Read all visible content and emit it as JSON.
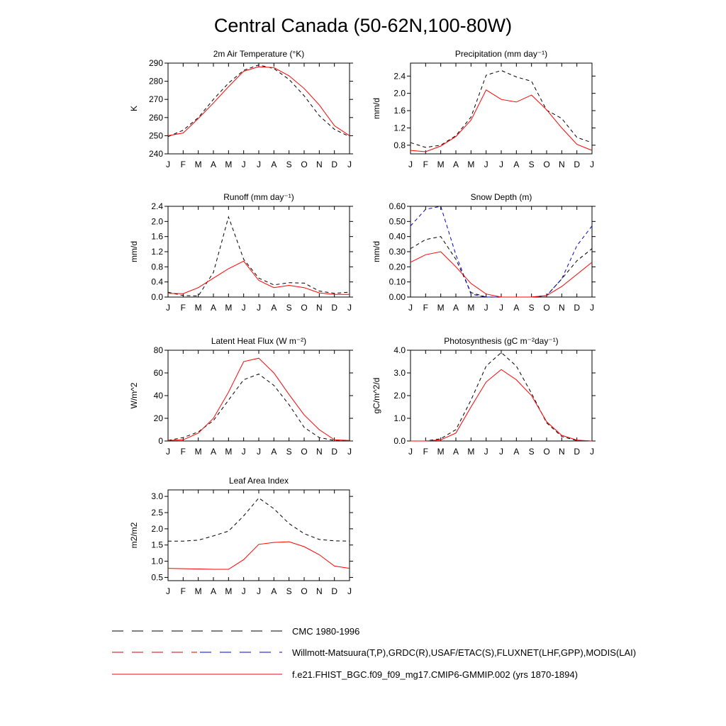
{
  "figure": {
    "title": "Central Canada (50-62N,100-80W)"
  },
  "legend": [
    {
      "label": "CMC 1980-1996",
      "color": "#000000",
      "dash": "dashed"
    },
    {
      "label": "Willmott-Matsuura(T,P),GRDC(R),USAF/ETAC(S),FLUXNET(LHF,GPP),MODIS(LAI)",
      "color": "#cc0000",
      "color2": "#0000cc",
      "dash": "dashed"
    },
    {
      "label": "f.e21.FHIST_BGC.f09_f09_mg17.CMIP6-GMMIP.002 (yrs 1870-1894)",
      "color": "#ff0000",
      "dash": "solid"
    }
  ],
  "chart_data": [
    {
      "type": "line",
      "title": "2m Air Temperature (°K)",
      "ylabel": "K",
      "categories": [
        "J",
        "F",
        "M",
        "A",
        "M",
        "J",
        "J",
        "A",
        "S",
        "O",
        "N",
        "D",
        "J"
      ],
      "ylim": [
        240,
        290
      ],
      "yticks": [
        "240",
        "250",
        "260",
        "270",
        "280",
        "290"
      ],
      "series": [
        {
          "style": "obs",
          "color": "#000000",
          "dash": "5,4",
          "values": [
            249.5,
            253.0,
            260.0,
            270.0,
            279.0,
            286.0,
            289.0,
            287.0,
            281.0,
            272.0,
            261.0,
            253.5,
            249.5
          ]
        },
        {
          "style": "model",
          "color": "#ff0000",
          "dash": "",
          "values": [
            250.0,
            251.5,
            259.5,
            268.0,
            277.0,
            285.5,
            288.0,
            287.5,
            283.0,
            276.0,
            267.0,
            255.5,
            250.0
          ]
        }
      ]
    },
    {
      "type": "line",
      "title": "Precipitation (mm day⁻¹)",
      "ylabel": "mm/d",
      "categories": [
        "J",
        "F",
        "M",
        "A",
        "M",
        "J",
        "J",
        "A",
        "S",
        "O",
        "N",
        "D",
        "J"
      ],
      "ylim": [
        0.6,
        2.7
      ],
      "yticks": [
        "0.8",
        "1.2",
        "1.6",
        "2.0",
        "2.4"
      ],
      "series": [
        {
          "style": "obs",
          "color": "#000000",
          "dash": "5,4",
          "values": [
            0.86,
            0.75,
            0.8,
            1.02,
            1.45,
            2.42,
            2.53,
            2.38,
            2.28,
            1.61,
            1.42,
            0.98,
            0.86
          ]
        },
        {
          "style": "model",
          "color": "#ff0000",
          "dash": "",
          "values": [
            0.68,
            0.65,
            0.78,
            1.0,
            1.38,
            2.08,
            1.86,
            1.8,
            1.96,
            1.62,
            1.2,
            0.82,
            0.68
          ]
        }
      ]
    },
    {
      "type": "line",
      "title": "Runoff (mm day⁻¹)",
      "ylabel": "mm/d",
      "categories": [
        "J",
        "F",
        "M",
        "A",
        "M",
        "J",
        "J",
        "A",
        "S",
        "O",
        "N",
        "D",
        "J"
      ],
      "ylim": [
        0.0,
        2.4
      ],
      "yticks": [
        "0.0",
        "0.4",
        "0.8",
        "1.2",
        "1.6",
        "2.0",
        "2.4"
      ],
      "series": [
        {
          "style": "obs",
          "color": "#000000",
          "dash": "5,4",
          "values": [
            0.13,
            0.04,
            0.03,
            0.65,
            2.12,
            1.0,
            0.5,
            0.32,
            0.38,
            0.37,
            0.16,
            0.1,
            0.13
          ]
        },
        {
          "style": "model",
          "color": "#ff0000",
          "dash": "",
          "values": [
            0.1,
            0.09,
            0.25,
            0.5,
            0.75,
            0.95,
            0.44,
            0.25,
            0.31,
            0.25,
            0.11,
            0.07,
            0.07
          ]
        }
      ]
    },
    {
      "type": "line",
      "title": "Snow Depth (m)",
      "ylabel": "mm/d",
      "categories": [
        "J",
        "F",
        "M",
        "A",
        "M",
        "J",
        "J",
        "A",
        "S",
        "O",
        "N",
        "D",
        "J"
      ],
      "ylim": [
        0.0,
        0.6
      ],
      "yticks": [
        "0.00",
        "0.10",
        "0.20",
        "0.30",
        "0.40",
        "0.50",
        "0.60"
      ],
      "series": [
        {
          "style": "obs",
          "color": "#000000",
          "dash": "5,4",
          "values": [
            0.32,
            0.38,
            0.4,
            0.25,
            0.03,
            0.0,
            0.0,
            0.0,
            0.0,
            0.01,
            0.12,
            0.24,
            0.32
          ]
        },
        {
          "style": "obs-blue",
          "color": "#0000cc",
          "dash": "5,4",
          "values": [
            0.47,
            0.58,
            0.6,
            0.28,
            0.02,
            0.0,
            0.0,
            0.0,
            0.0,
            0.01,
            0.12,
            0.34,
            0.47
          ]
        },
        {
          "style": "model",
          "color": "#ff0000",
          "dash": "",
          "values": [
            0.23,
            0.28,
            0.3,
            0.2,
            0.09,
            0.02,
            0.0,
            0.0,
            0.0,
            0.01,
            0.07,
            0.15,
            0.23
          ]
        }
      ]
    },
    {
      "type": "line",
      "title": "Latent Heat Flux (W m⁻²)",
      "ylabel": "W/m^2",
      "categories": [
        "J",
        "F",
        "M",
        "A",
        "M",
        "J",
        "J",
        "A",
        "S",
        "O",
        "N",
        "D",
        "J"
      ],
      "ylim": [
        0,
        80
      ],
      "yticks": [
        "0",
        "20",
        "40",
        "60",
        "80"
      ],
      "series": [
        {
          "style": "obs",
          "color": "#000000",
          "dash": "5,4",
          "values": [
            0.5,
            3,
            8,
            18,
            36,
            54,
            59,
            49,
            32,
            12,
            3,
            0.5,
            0.5
          ]
        },
        {
          "style": "model",
          "color": "#ff0000",
          "dash": "",
          "values": [
            0.5,
            1,
            7,
            20,
            43,
            70,
            73,
            60,
            41,
            23,
            10,
            1,
            0.5
          ]
        }
      ]
    },
    {
      "type": "line",
      "title": "Photosynthesis (gC m⁻²day⁻¹)",
      "ylabel": "gC/m^2/d",
      "categories": [
        "J",
        "F",
        "M",
        "A",
        "M",
        "J",
        "J",
        "A",
        "S",
        "O",
        "N",
        "D",
        "J"
      ],
      "ylim": [
        0,
        4
      ],
      "yticks": [
        "0.0",
        "1.0",
        "2.0",
        "3.0",
        "4.0"
      ],
      "series": [
        {
          "style": "obs",
          "color": "#000000",
          "dash": "5,4",
          "values": [
            0.0,
            0.0,
            0.1,
            0.5,
            1.8,
            3.3,
            3.9,
            3.3,
            2.1,
            0.8,
            0.2,
            0.02,
            0.0
          ]
        },
        {
          "style": "model",
          "color": "#ff0000",
          "dash": "",
          "values": [
            0.0,
            0.0,
            0.05,
            0.35,
            1.5,
            2.6,
            3.15,
            2.7,
            2.0,
            0.85,
            0.25,
            0.04,
            0.0
          ]
        }
      ]
    },
    {
      "type": "line",
      "title": "Leaf Area Index",
      "ylabel": "m2/m2",
      "categories": [
        "J",
        "F",
        "M",
        "A",
        "M",
        "J",
        "J",
        "A",
        "S",
        "O",
        "N",
        "D",
        "J"
      ],
      "ylim": [
        0.4,
        3.2
      ],
      "yticks": [
        "0.5",
        "1.0",
        "1.5",
        "2.0",
        "2.5",
        "3.0"
      ],
      "series": [
        {
          "style": "obs",
          "color": "#000000",
          "dash": "5,4",
          "values": [
            1.62,
            1.62,
            1.65,
            1.78,
            1.93,
            2.4,
            2.95,
            2.62,
            2.16,
            1.85,
            1.67,
            1.63,
            1.62
          ]
        },
        {
          "style": "model",
          "color": "#ff0000",
          "dash": "",
          "values": [
            0.78,
            0.77,
            0.76,
            0.75,
            0.75,
            1.05,
            1.52,
            1.58,
            1.6,
            1.45,
            1.2,
            0.85,
            0.78
          ]
        }
      ]
    }
  ]
}
